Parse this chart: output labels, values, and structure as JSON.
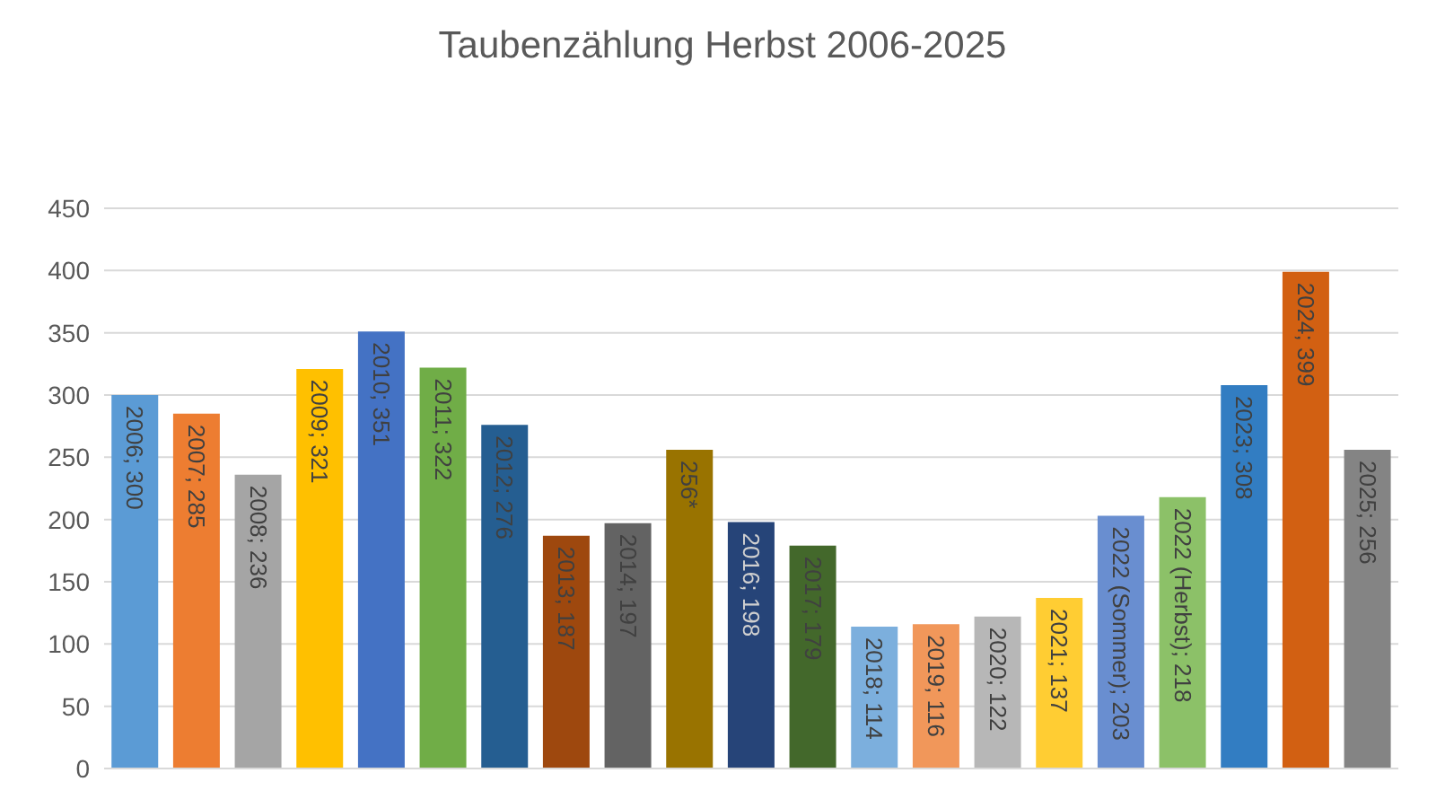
{
  "chart_data": {
    "type": "bar",
    "title": "Taubenzählung Herbst 2006-2025",
    "categories": [
      null,
      null,
      null,
      null,
      null,
      null,
      null,
      null,
      null,
      null,
      null,
      null,
      null,
      null,
      null,
      null,
      null,
      null,
      null,
      null,
      null
    ],
    "values": [
      300,
      285,
      236,
      321,
      351,
      322,
      276,
      187,
      197,
      256,
      198,
      179,
      114,
      116,
      122,
      137,
      203,
      218,
      308,
      399,
      256
    ],
    "value_labels": [
      "2006; 300",
      "2007; 285",
      "2008; 236",
      "2009; 321",
      "2010; 351",
      "2011; 322",
      "2012; 276",
      "2013; 187",
      "2014; 197",
      "256*",
      "2016; 198",
      "2017; 179",
      "2018; 114",
      "2019; 116",
      "2020; 122",
      "2021; 137",
      "2022 (Sommer); 203",
      "2022 (Herbst); 218",
      "2023; 308",
      "2024; 399",
      "2025; 256"
    ],
    "colors": [
      "#5b9bd5",
      "#ed7d31",
      "#a5a5a5",
      "#ffc000",
      "#4472c4",
      "#70ad47",
      "#255e91",
      "#9e480e",
      "#636363",
      "#997300",
      "#264478",
      "#43682b",
      "#7cafdd",
      "#f1975a",
      "#b7b7b7",
      "#ffcd33",
      "#698ed0",
      "#8cc168",
      "#327dc2",
      "#d26012",
      "#848484"
    ],
    "ylim": [
      0,
      450
    ],
    "yticks": [
      0,
      50,
      100,
      150,
      200,
      250,
      300,
      350,
      400,
      450
    ],
    "grid": "y",
    "legend": false
  }
}
